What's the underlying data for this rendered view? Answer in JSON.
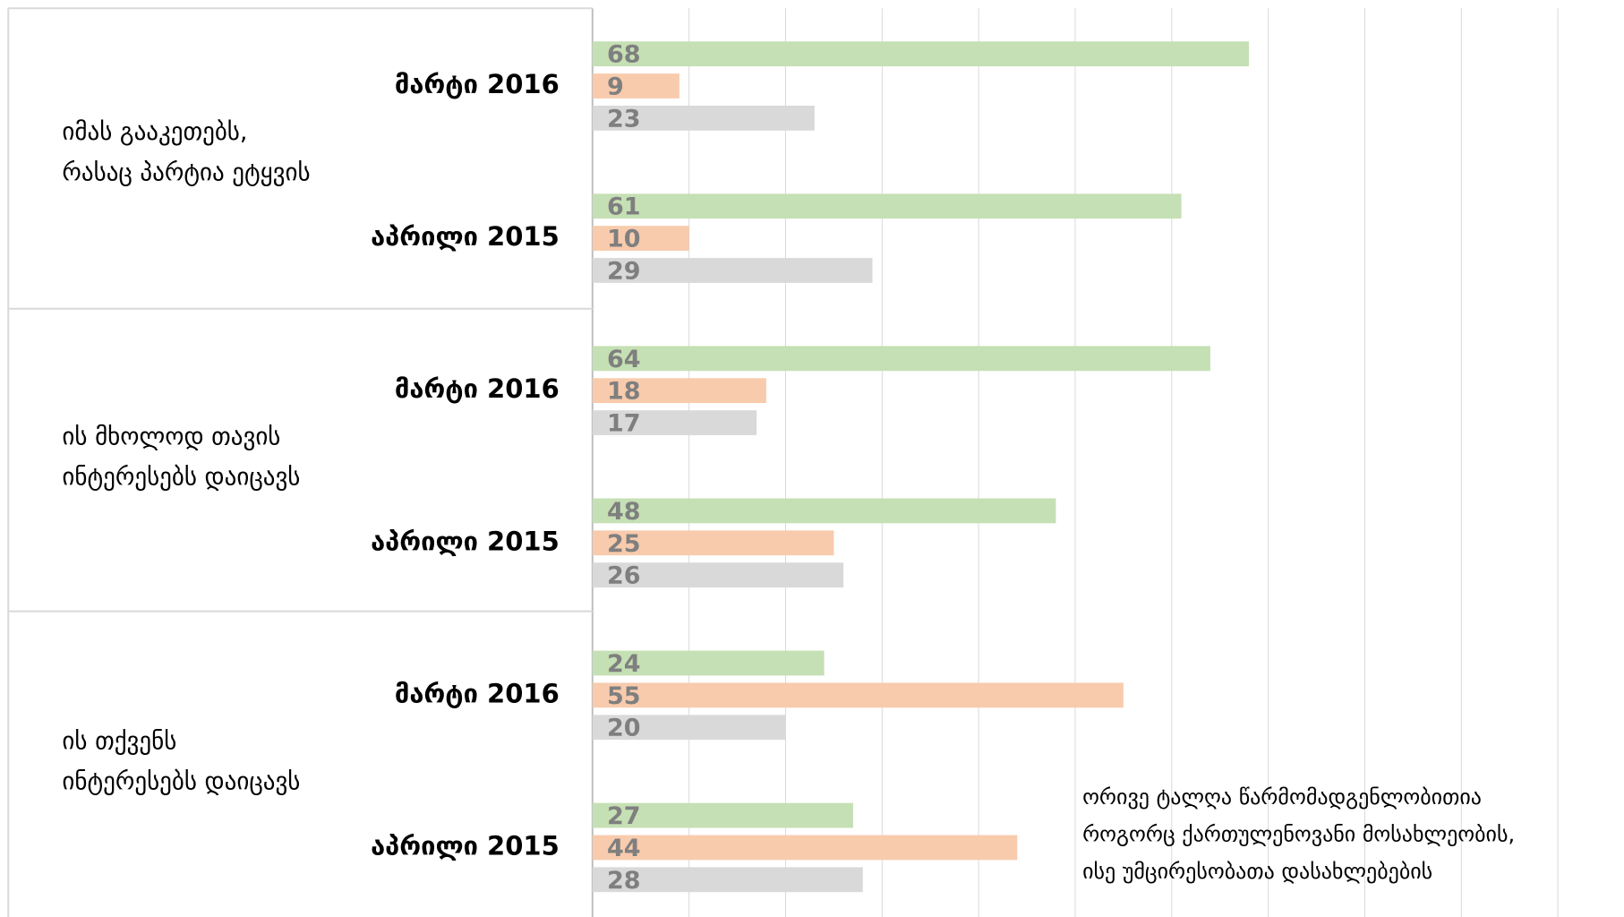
{
  "chart_data": {
    "type": "bar",
    "orientation": "horizontal",
    "groups": [
      [
        "იმას გააკეთებს,",
        "რასაც  პარტია ეტყვის"
      ],
      [
        "ის მხოლოდ თავის",
        "ინტერესებს დაიცავს"
      ],
      [
        "ის თქვენს",
        "ინტერესებს დაიცავს"
      ]
    ],
    "categories": [
      "მარტი 2016",
      "აპრილი 2015",
      "მარტი 2016",
      "აპრილი 2015",
      "მარტი 2016",
      "აპრილი 2015"
    ],
    "series": [
      {
        "color": "#c5e0b4",
        "values": [
          68,
          61,
          64,
          48,
          24,
          27
        ]
      },
      {
        "color": "#f8cbad",
        "values": [
          9,
          10,
          18,
          25,
          55,
          44
        ]
      },
      {
        "color": "#d9d9d9",
        "values": [
          23,
          29,
          17,
          26,
          20,
          28
        ]
      }
    ],
    "xlim": [
      0,
      100
    ],
    "xticks": [
      0,
      10,
      20,
      30,
      40,
      50,
      60,
      70,
      80,
      90,
      100
    ],
    "grid": true,
    "annotation": [
      "ორივე ტალღა წარმომადგენლობითია",
      "როგორც ქართულენოვანი მოსახლეობის,",
      "ისე უმცირესობათა დასახლებების"
    ]
  }
}
